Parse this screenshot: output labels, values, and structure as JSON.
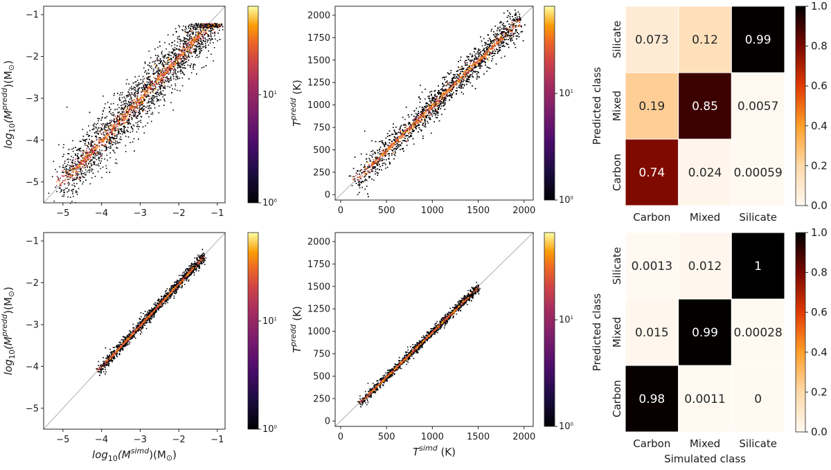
{
  "chart_data": [
    {
      "type": "scatter",
      "panel": "top-left",
      "description_kind": "density-hexbin",
      "xlim": [
        -5.5,
        -0.8
      ],
      "ylim": [
        -5.5,
        -0.8
      ],
      "x_ticks": [
        -5,
        -4,
        -3,
        -2,
        -1
      ],
      "y_ticks": [
        -1,
        -2,
        -3,
        -4,
        -5
      ],
      "x_tick_labels": [
        "−5",
        "−4",
        "−3",
        "−2",
        "−1"
      ],
      "y_tick_labels": [
        "−1",
        "−2",
        "−3",
        "−4",
        "−5"
      ],
      "ylabel": "log10(Md pred)(M⊙)",
      "ylabel_parts": {
        "base": "log",
        "sub1": "10",
        "paren": "(M",
        "sub2": "d",
        "sup": "pred",
        "tail": ")(M",
        "tail_sub": "⊙",
        "end": ")"
      },
      "xlabel": "",
      "colorbar": {
        "scale": "log",
        "min_label": "10",
        "min_exp": "0",
        "mid_label": "10",
        "mid_exp": "1"
      },
      "trend": {
        "x_start": -5.1,
        "x_end": -1.0,
        "slope": 1.0,
        "intercept": 0.0,
        "spread": 0.28,
        "saturation_y": -1.3
      }
    },
    {
      "type": "scatter",
      "panel": "top-middle",
      "description_kind": "density-hexbin",
      "xlim": [
        -60,
        2100
      ],
      "ylim": [
        -60,
        2100
      ],
      "x_ticks": [
        0,
        500,
        1000,
        1500,
        2000
      ],
      "y_ticks": [
        0,
        250,
        500,
        750,
        1000,
        1250,
        1500,
        1750,
        2000
      ],
      "x_tick_labels": [
        "0",
        "500",
        "1000",
        "1500",
        "2000"
      ],
      "y_tick_labels": [
        "0",
        "250",
        "500",
        "750",
        "1000",
        "1250",
        "1500",
        "1750",
        "2000"
      ],
      "ylabel": "Td pred (K)",
      "ylabel_parts": {
        "base": "T",
        "sub": "d",
        "sup": "pred",
        "tail": " (K)"
      },
      "xlabel": "",
      "colorbar": {
        "scale": "log",
        "min_label": "10",
        "min_exp": "0",
        "mid_label": "10",
        "mid_exp": "1"
      },
      "trend": {
        "x_start": 150,
        "x_end": 1950,
        "slope": 1.0,
        "intercept": 0,
        "spread": 75
      }
    },
    {
      "type": "heatmap",
      "panel": "top-right",
      "x_categories": [
        "Carbon",
        "Mixed",
        "Silicate"
      ],
      "y_categories": [
        "Silicate",
        "Mixed",
        "Carbon"
      ],
      "values": [
        [
          0.073,
          0.12,
          0.99
        ],
        [
          0.19,
          0.85,
          0.0057
        ],
        [
          0.74,
          0.024,
          0.00059
        ]
      ],
      "value_labels": [
        [
          "0.073",
          "0.12",
          "0.99"
        ],
        [
          "0.19",
          "0.85",
          "0.0057"
        ],
        [
          "0.74",
          "0.024",
          "0.00059"
        ]
      ],
      "ylabel": "Predicted class",
      "xlabel": "",
      "colorbar": {
        "min": 0.0,
        "max": 1.0,
        "ticks": [
          "1.0",
          "0.8",
          "0.6",
          "0.4",
          "0.2",
          "0.0"
        ]
      }
    },
    {
      "type": "scatter",
      "panel": "bottom-left",
      "description_kind": "density-hexbin",
      "xlim": [
        -5.5,
        -0.8
      ],
      "ylim": [
        -5.5,
        -0.8
      ],
      "x_ticks": [
        -5,
        -4,
        -3,
        -2,
        -1
      ],
      "y_ticks": [
        -1,
        -2,
        -3,
        -4,
        -5
      ],
      "x_tick_labels": [
        "−5",
        "−4",
        "−3",
        "−2",
        "−1"
      ],
      "y_tick_labels": [
        "−1",
        "−2",
        "−3",
        "−4",
        "−5"
      ],
      "ylabel": "log10(Md pred)(M⊙)",
      "ylabel_parts": {
        "base": "log",
        "sub1": "10",
        "paren": "(M",
        "sub2": "d",
        "sup": "pred",
        "tail": ")(M",
        "tail_sub": "⊙",
        "end": ")"
      },
      "xlabel": "log10(Md sim)(M⊙)",
      "xlabel_parts": {
        "base": "log",
        "sub1": "10",
        "paren": "(M",
        "sub2": "d",
        "sup": "sim",
        "tail": ")(M",
        "tail_sub": "⊙",
        "end": ")"
      },
      "colorbar": {
        "scale": "log",
        "min_label": "10",
        "min_exp": "0",
        "mid_label": "10",
        "mid_exp": "1"
      },
      "trend": {
        "x_start": -4.1,
        "x_end": -1.35,
        "slope": 1.0,
        "intercept": 0.0,
        "spread": 0.06
      }
    },
    {
      "type": "scatter",
      "panel": "bottom-middle",
      "description_kind": "density-hexbin",
      "xlim": [
        -60,
        2100
      ],
      "ylim": [
        -60,
        2100
      ],
      "x_ticks": [
        0,
        500,
        1000,
        1500,
        2000
      ],
      "y_ticks": [
        0,
        250,
        500,
        750,
        1000,
        1250,
        1500,
        1750,
        2000
      ],
      "x_tick_labels": [
        "0",
        "500",
        "1000",
        "1500",
        "2000"
      ],
      "y_tick_labels": [
        "0",
        "250",
        "500",
        "750",
        "1000",
        "1250",
        "1500",
        "1750",
        "2000"
      ],
      "ylabel": "Td pred (K)",
      "ylabel_parts": {
        "base": "T",
        "sub": "d",
        "sup": "pred",
        "tail": " (K)"
      },
      "xlabel": "Td sim (K)",
      "xlabel_parts": {
        "base": "T",
        "sub": "d",
        "sup": "sim",
        "tail": " (K)"
      },
      "colorbar": {
        "scale": "log",
        "min_label": "10",
        "min_exp": "0",
        "mid_label": "10",
        "mid_exp": "1"
      },
      "trend": {
        "x_start": 200,
        "x_end": 1500,
        "slope": 1.0,
        "intercept": 0,
        "spread": 22
      }
    },
    {
      "type": "heatmap",
      "panel": "bottom-right",
      "x_categories": [
        "Carbon",
        "Mixed",
        "Silicate"
      ],
      "y_categories": [
        "Silicate",
        "Mixed",
        "Carbon"
      ],
      "values": [
        [
          0.0013,
          0.012,
          1.0
        ],
        [
          0.015,
          0.99,
          0.00028
        ],
        [
          0.98,
          0.0011,
          0.0
        ]
      ],
      "value_labels": [
        [
          "0.0013",
          "0.012",
          "1"
        ],
        [
          "0.015",
          "0.99",
          "0.00028"
        ],
        [
          "0.98",
          "0.0011",
          "0"
        ]
      ],
      "ylabel": "Predicted class",
      "xlabel": "Simulated class",
      "colorbar": {
        "min": 0.0,
        "max": 1.0,
        "ticks": [
          "1.0",
          "0.8",
          "0.6",
          "0.4",
          "0.2",
          "0.0"
        ]
      }
    }
  ]
}
